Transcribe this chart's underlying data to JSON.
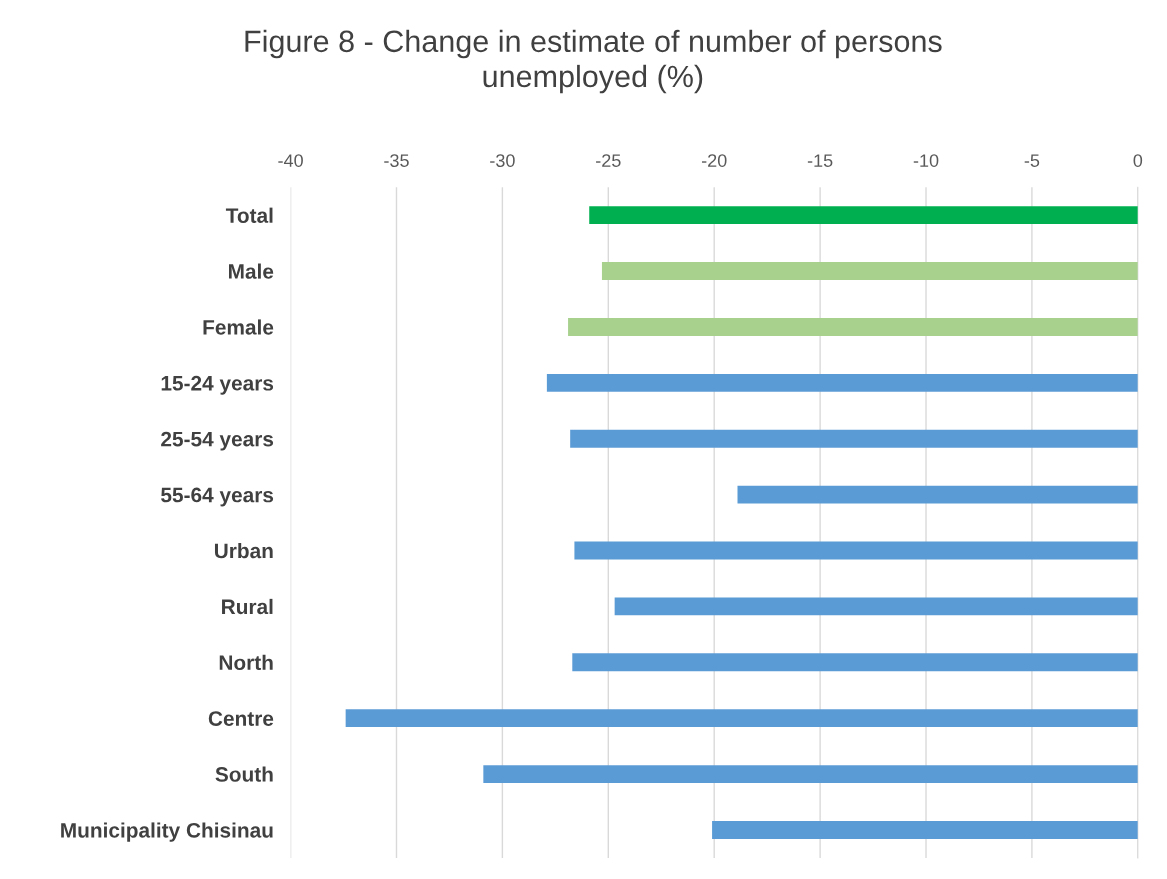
{
  "chart_data": {
    "type": "bar",
    "orientation": "horizontal",
    "title": "Figure 8 - Change in estimate of number of persons\nunemployed (%)",
    "categories": [
      "Total",
      "Male",
      "Female",
      "15-24 years",
      "25-54 years",
      "55-64 years",
      "Urban",
      "Rural",
      "North",
      "Centre",
      "South",
      "Municipality Chisinau"
    ],
    "values": [
      -25.9,
      -25.3,
      -26.9,
      -27.9,
      -26.8,
      -18.9,
      -26.6,
      -24.7,
      -26.7,
      -37.4,
      -30.9,
      -20.1
    ],
    "colors": [
      "#00b050",
      "#a9d18e",
      "#a9d18e",
      "#5b9bd5",
      "#5b9bd5",
      "#5b9bd5",
      "#5b9bd5",
      "#5b9bd5",
      "#5b9bd5",
      "#5b9bd5",
      "#5b9bd5",
      "#5b9bd5"
    ],
    "xlim": [
      -40,
      0
    ],
    "xticks": [
      -40,
      -35,
      -30,
      -25,
      -20,
      -15,
      -10,
      -5,
      0
    ],
    "grid": "x",
    "legend": false
  }
}
